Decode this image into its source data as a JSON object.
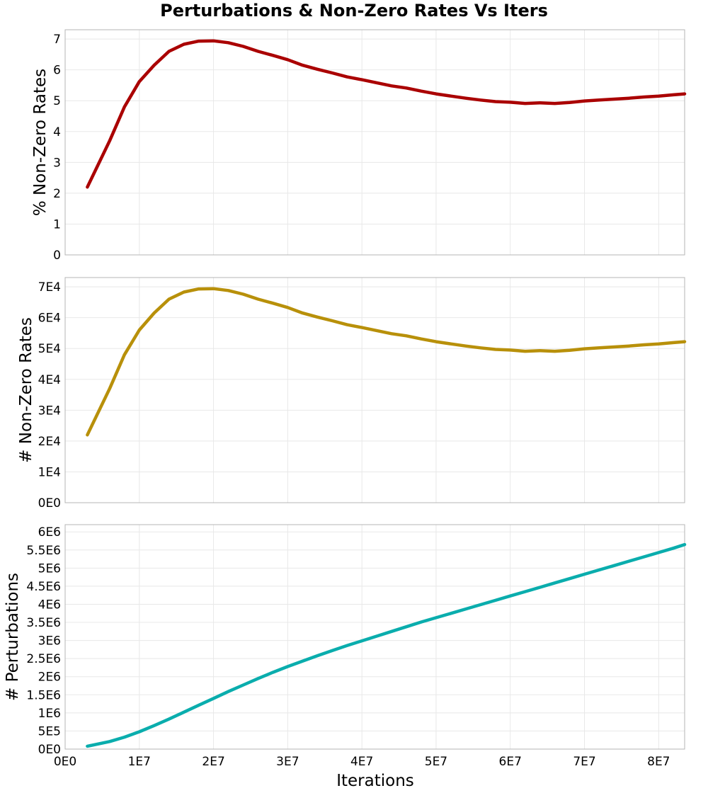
{
  "chart_data": {
    "type": "line",
    "title": "Perturbations & Non-Zero Rates Vs Iters",
    "xlabel": "Iterations",
    "xlim": [
      0,
      83500000
    ],
    "x_ticks": [
      0,
      10000000,
      20000000,
      30000000,
      40000000,
      50000000,
      60000000,
      70000000,
      80000000
    ],
    "x_tick_labels": [
      "0E0",
      "1E7",
      "2E7",
      "3E7",
      "4E7",
      "5E7",
      "6E7",
      "7E7",
      "8E7"
    ],
    "grid": true,
    "panels": [
      {
        "ylabel": "% Non-Zero Rates",
        "ylim": [
          0,
          7.3
        ],
        "y_ticks": [
          0,
          1,
          2,
          3,
          4,
          5,
          6,
          7
        ],
        "y_tick_labels": [
          "0",
          "1",
          "2",
          "3",
          "4",
          "5",
          "6",
          "7"
        ],
        "color": "#aa0000",
        "series": [
          {
            "x": [
              3000000,
              6000000,
              8000000,
              10000000,
              12000000,
              14000000,
              16000000,
              18000000,
              20000000,
              22000000,
              24000000,
              26000000,
              28000000,
              30000000,
              32000000,
              34000000,
              36000000,
              38000000,
              40000000,
              42000000,
              44000000,
              46000000,
              48000000,
              50000000,
              52000000,
              54000000,
              56000000,
              58000000,
              60000000,
              62000000,
              64000000,
              66000000,
              68000000,
              70000000,
              72000000,
              74000000,
              76000000,
              78000000,
              80000000,
              82000000,
              83500000
            ],
            "values": [
              2.2,
              3.7,
              4.8,
              5.62,
              6.15,
              6.6,
              6.83,
              6.93,
              6.94,
              6.88,
              6.76,
              6.6,
              6.47,
              6.33,
              6.15,
              6.02,
              5.9,
              5.77,
              5.68,
              5.58,
              5.48,
              5.41,
              5.31,
              5.22,
              5.15,
              5.08,
              5.02,
              4.97,
              4.95,
              4.91,
              4.93,
              4.91,
              4.94,
              4.99,
              5.02,
              5.05,
              5.08,
              5.12,
              5.15,
              5.19,
              5.22
            ]
          }
        ]
      },
      {
        "ylabel": "# Non-Zero Rates",
        "ylim": [
          0,
          73000
        ],
        "y_ticks": [
          0,
          10000,
          20000,
          30000,
          40000,
          50000,
          60000,
          70000
        ],
        "y_tick_labels": [
          "0E0",
          "1E4",
          "2E4",
          "3E4",
          "4E4",
          "5E4",
          "6E4",
          "7E4"
        ],
        "color": "#b8900a",
        "series": [
          {
            "x": [
              3000000,
              6000000,
              8000000,
              10000000,
              12000000,
              14000000,
              16000000,
              18000000,
              20000000,
              22000000,
              24000000,
              26000000,
              28000000,
              30000000,
              32000000,
              34000000,
              36000000,
              38000000,
              40000000,
              42000000,
              44000000,
              46000000,
              48000000,
              50000000,
              52000000,
              54000000,
              56000000,
              58000000,
              60000000,
              62000000,
              64000000,
              66000000,
              68000000,
              70000000,
              72000000,
              74000000,
              76000000,
              78000000,
              80000000,
              82000000,
              83500000
            ],
            "values": [
              22000,
              37000,
              48000,
              56000,
              61500,
              66000,
              68300,
              69300,
              69400,
              68800,
              67600,
              66000,
              64700,
              63300,
              61500,
              60200,
              59000,
              57700,
              56800,
              55800,
              54800,
              54100,
              53100,
              52200,
              51500,
              50800,
              50200,
              49700,
              49500,
              49100,
              49300,
              49100,
              49400,
              49900,
              50200,
              50500,
              50800,
              51200,
              51500,
              51900,
              52200
            ]
          }
        ]
      },
      {
        "ylabel": "# Perturbations",
        "ylim": [
          0,
          6200000
        ],
        "y_ticks": [
          0,
          500000,
          1000000,
          1500000,
          2000000,
          2500000,
          3000000,
          3500000,
          4000000,
          4500000,
          5000000,
          5500000,
          6000000
        ],
        "y_tick_labels": [
          "0E0",
          "5E5",
          "1E6",
          "1.5E6",
          "2E6",
          "2.5E6",
          "3E6",
          "3.5E6",
          "4E6",
          "4.5E6",
          "5E6",
          "5.5E6",
          "6E6"
        ],
        "color": "#0aadad",
        "series": [
          {
            "x": [
              3000000,
              6000000,
              8000000,
              10000000,
              12000000,
              14000000,
              16000000,
              18000000,
              20000000,
              22000000,
              24000000,
              26000000,
              28000000,
              30000000,
              32000000,
              34000000,
              36000000,
              38000000,
              40000000,
              42000000,
              44000000,
              46000000,
              48000000,
              50000000,
              52000000,
              54000000,
              56000000,
              58000000,
              60000000,
              62000000,
              64000000,
              66000000,
              68000000,
              70000000,
              72000000,
              74000000,
              76000000,
              78000000,
              80000000,
              82000000,
              83500000
            ],
            "values": [
              80000,
              210000,
              330000,
              480000,
              650000,
              830000,
              1020000,
              1210000,
              1400000,
              1590000,
              1770000,
              1950000,
              2120000,
              2280000,
              2430000,
              2580000,
              2720000,
              2860000,
              2990000,
              3120000,
              3250000,
              3380000,
              3510000,
              3630000,
              3750000,
              3870000,
              3990000,
              4110000,
              4230000,
              4350000,
              4470000,
              4590000,
              4710000,
              4830000,
              4950000,
              5070000,
              5190000,
              5310000,
              5430000,
              5550000,
              5650000
            ]
          }
        ]
      }
    ]
  }
}
